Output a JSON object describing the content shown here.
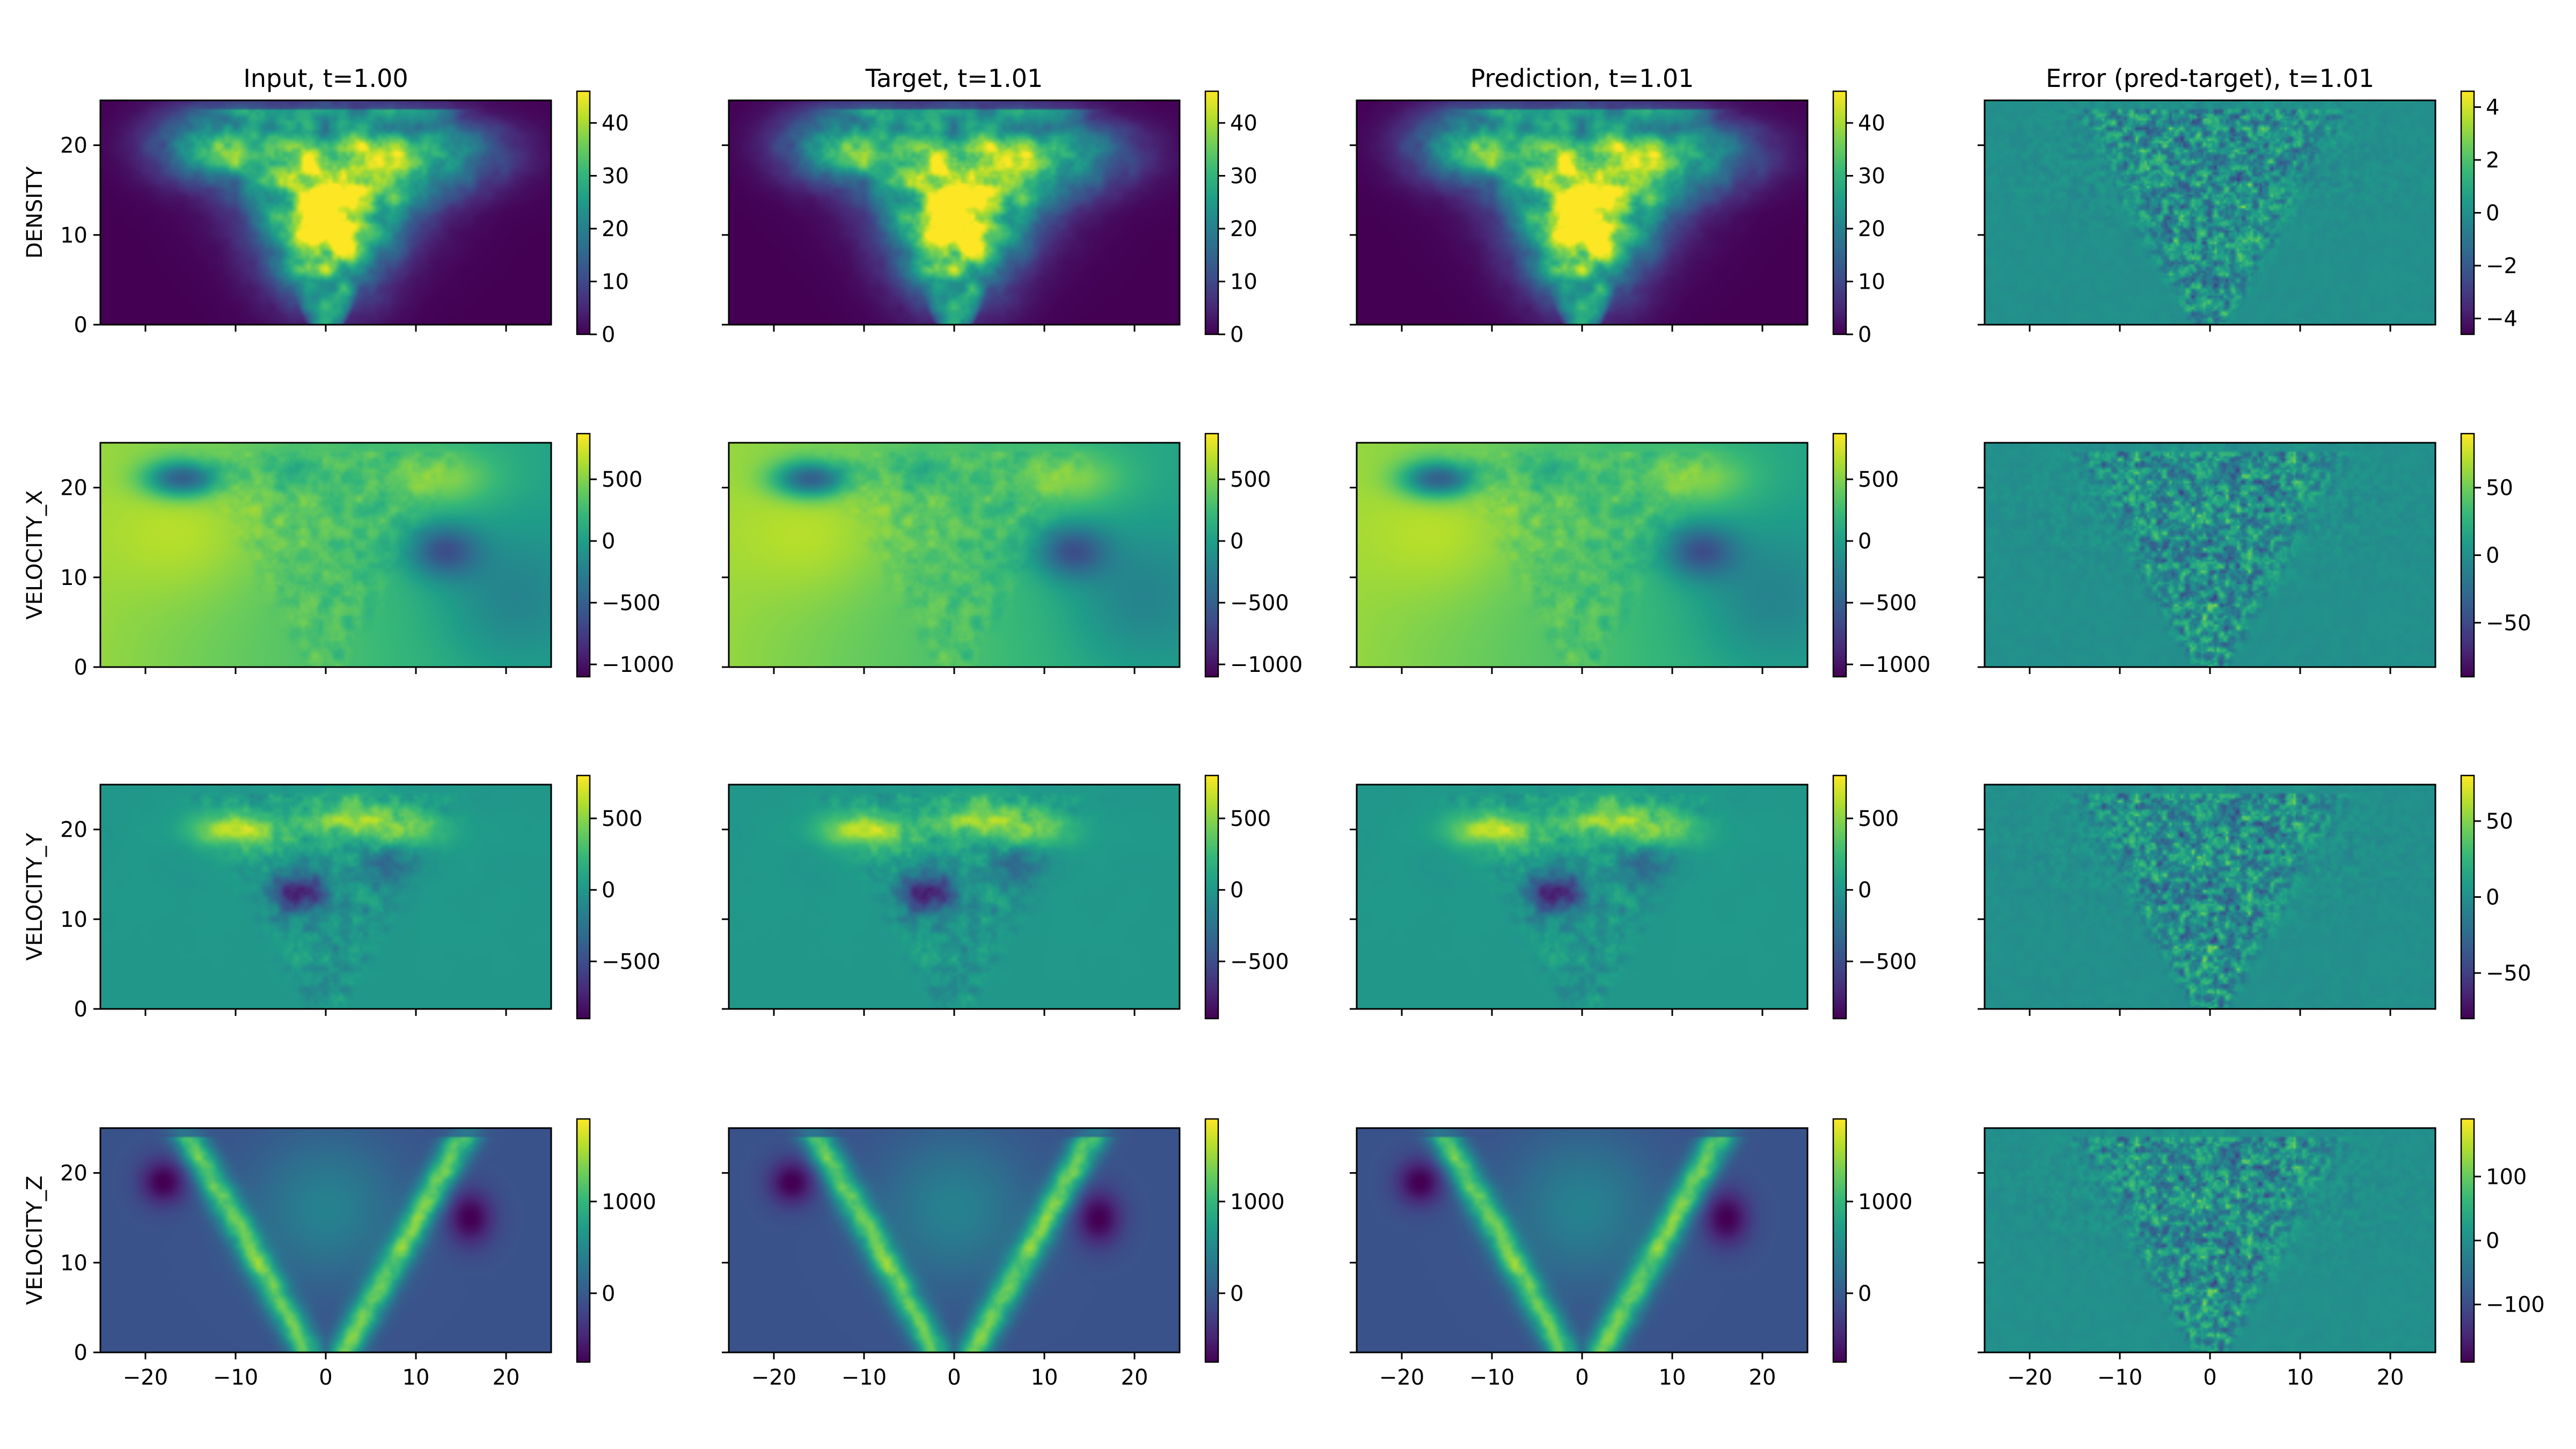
{
  "chart_data": {
    "type": "heatmap",
    "layout": "4 rows x 4 columns of heatmap panels, each with its own colorbar",
    "colormap": "viridis",
    "column_titles": [
      "Input, t=1.00",
      "Target, t=1.01",
      "Prediction, t=1.01",
      "Error (pred-target), t=1.01"
    ],
    "row_labels": [
      "DENSITY",
      "VELOCITY_X",
      "VELOCITY_Y",
      "VELOCITY_Z"
    ],
    "x_axis": {
      "range": [
        -25,
        25
      ],
      "ticks": [
        -20,
        -10,
        0,
        10,
        20
      ],
      "tick_labels": [
        "−20",
        "−10",
        "0",
        "10",
        "20"
      ],
      "labels_shown_on_bottom_row_only": true
    },
    "y_axis": {
      "range": [
        0,
        25
      ],
      "ticks": [
        0,
        10,
        20
      ],
      "tick_labels": [
        "0",
        "10",
        "20"
      ],
      "labels_shown_on_first_column_only": true
    },
    "colorbars": [
      [
        {
          "range": [
            0,
            46
          ],
          "ticks": [
            0,
            10,
            20,
            30,
            40
          ],
          "tick_labels": [
            "0",
            "10",
            "20",
            "30",
            "40"
          ]
        },
        {
          "range": [
            0,
            46
          ],
          "ticks": [
            0,
            10,
            20,
            30,
            40
          ],
          "tick_labels": [
            "0",
            "10",
            "20",
            "30",
            "40"
          ]
        },
        {
          "range": [
            0,
            46
          ],
          "ticks": [
            0,
            10,
            20,
            30,
            40
          ],
          "tick_labels": [
            "0",
            "10",
            "20",
            "30",
            "40"
          ]
        },
        {
          "range": [
            -4.6,
            4.6
          ],
          "ticks": [
            -4,
            -2,
            0,
            2,
            4
          ],
          "tick_labels": [
            "−4",
            "−2",
            "0",
            "2",
            "4"
          ]
        }
      ],
      [
        {
          "range": [
            -1100,
            870
          ],
          "ticks": [
            -1000,
            -500,
            0,
            500
          ],
          "tick_labels": [
            "−1000",
            "−500",
            "0",
            "500"
          ]
        },
        {
          "range": [
            -1100,
            870
          ],
          "ticks": [
            -1000,
            -500,
            0,
            500
          ],
          "tick_labels": [
            "−1000",
            "−500",
            "0",
            "500"
          ]
        },
        {
          "range": [
            -1100,
            870
          ],
          "ticks": [
            -1000,
            -500,
            0,
            500
          ],
          "tick_labels": [
            "−1000",
            "−500",
            "0",
            "500"
          ]
        },
        {
          "range": [
            -90,
            90
          ],
          "ticks": [
            -50,
            0,
            50
          ],
          "tick_labels": [
            "−50",
            "0",
            "50"
          ]
        }
      ],
      [
        {
          "range": [
            -900,
            800
          ],
          "ticks": [
            -500,
            0,
            500
          ],
          "tick_labels": [
            "−500",
            "0",
            "500"
          ]
        },
        {
          "range": [
            -900,
            800
          ],
          "ticks": [
            -500,
            0,
            500
          ],
          "tick_labels": [
            "−500",
            "0",
            "500"
          ]
        },
        {
          "range": [
            -900,
            800
          ],
          "ticks": [
            -500,
            0,
            500
          ],
          "tick_labels": [
            "−500",
            "0",
            "500"
          ]
        },
        {
          "range": [
            -80,
            80
          ],
          "ticks": [
            -50,
            0,
            50
          ],
          "tick_labels": [
            "−50",
            "0",
            "50"
          ]
        }
      ],
      [
        {
          "range": [
            -750,
            1900
          ],
          "ticks": [
            0,
            1000
          ],
          "tick_labels": [
            "0",
            "1000"
          ]
        },
        {
          "range": [
            -750,
            1900
          ],
          "ticks": [
            0,
            1000
          ],
          "tick_labels": [
            "0",
            "1000"
          ]
        },
        {
          "range": [
            -750,
            1900
          ],
          "ticks": [
            0,
            1000
          ],
          "tick_labels": [
            "0",
            "1000"
          ]
        },
        {
          "range": [
            -190,
            190
          ],
          "ticks": [
            -100,
            0,
            100
          ],
          "tick_labels": [
            "−100",
            "0",
            "100"
          ]
        }
      ]
    ],
    "field_descriptions": {
      "DENSITY": "plume rising from origin, dense region ~30-45 around y=10-22, background 0; error panel: noise ±4 in plume",
      "VELOCITY_X": "positive lobe upper-right (~+800), positive left side, negative pockets at (-17,21) and (12,13); error ±90 noisy in plume",
      "VELOCITY_Y": "positive band near y=20 (~+700), negative core near (-3,13); error ±80 noisy",
      "VELOCITY_Z": "two strong positive V-shaped jets (~+1800) from origin, negative vortices at (-18,19) and (16,15); error ±150 noisy"
    }
  }
}
